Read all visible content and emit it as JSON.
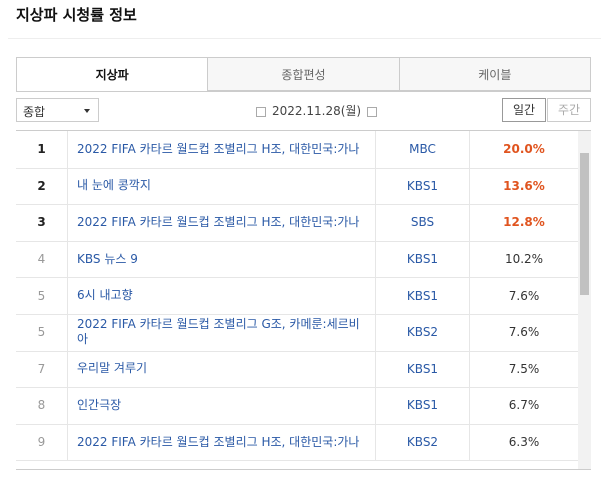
{
  "header": {
    "title": "지상파 시청률 정보"
  },
  "tabs": [
    {
      "label": "지상파",
      "active": true
    },
    {
      "label": "종합편성",
      "active": false
    },
    {
      "label": "케이블",
      "active": false
    }
  ],
  "controls": {
    "dropdown": "종합",
    "date": "2022.11.28(월)",
    "period": [
      "일간",
      "주간"
    ]
  },
  "table": {
    "rows": [
      [
        "1",
        "2022 FIFA 카타르 월드컵 조별리그 H조, 대한민국:가나",
        "MBC",
        "20.0%"
      ],
      [
        "2",
        "내 눈에 콩깍지",
        "KBS1",
        "13.6%"
      ],
      [
        "3",
        "2022 FIFA 카타르 월드컵 조별리그 H조, 대한민국:가나",
        "SBS",
        "12.8%"
      ],
      [
        "4",
        "KBS 뉴스 9",
        "KBS1",
        "10.2%"
      ],
      [
        "5",
        "6시 내고향",
        "KBS1",
        "7.6%"
      ],
      [
        "5",
        "2022 FIFA 카타르 월드컵 조별리그 G조, 카메룬:세르비아",
        "KBS2",
        "7.6%"
      ],
      [
        "7",
        "우리말 겨루기",
        "KBS1",
        "7.5%"
      ],
      [
        "8",
        "인간극장",
        "KBS1",
        "6.7%"
      ],
      [
        "9",
        "2022 FIFA 카타르 월드컵 조별리그 H조, 대한민국:가나",
        "KBS2",
        "6.3%"
      ]
    ]
  }
}
